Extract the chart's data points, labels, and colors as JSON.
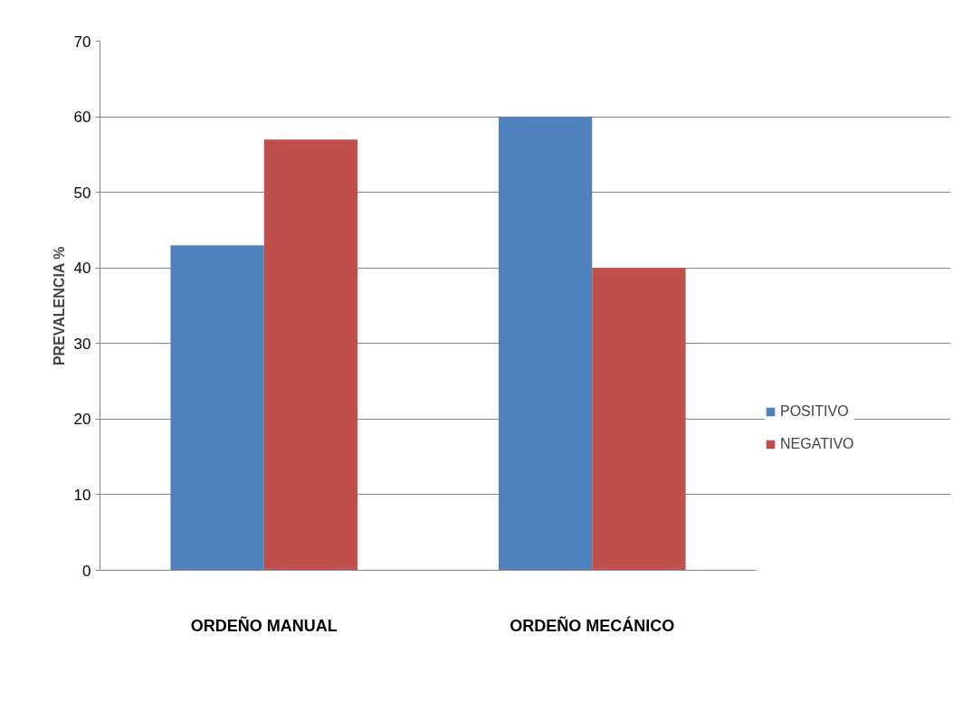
{
  "chart_data": {
    "type": "bar",
    "ylabel": "PREVALENCIA %",
    "categories": [
      "ORDEÑO MANUAL",
      "ORDEÑO MECÁNICO"
    ],
    "series": [
      {
        "name": "POSITIVO",
        "color": "#4f81bd",
        "values": [
          43,
          60
        ]
      },
      {
        "name": "NEGATIVO",
        "color": "#c0504d",
        "values": [
          57,
          40
        ]
      }
    ],
    "ylim": [
      0,
      70
    ],
    "yticks": [
      0,
      10,
      20,
      30,
      40,
      50,
      60,
      70
    ],
    "grid": "y",
    "legend": "right"
  }
}
